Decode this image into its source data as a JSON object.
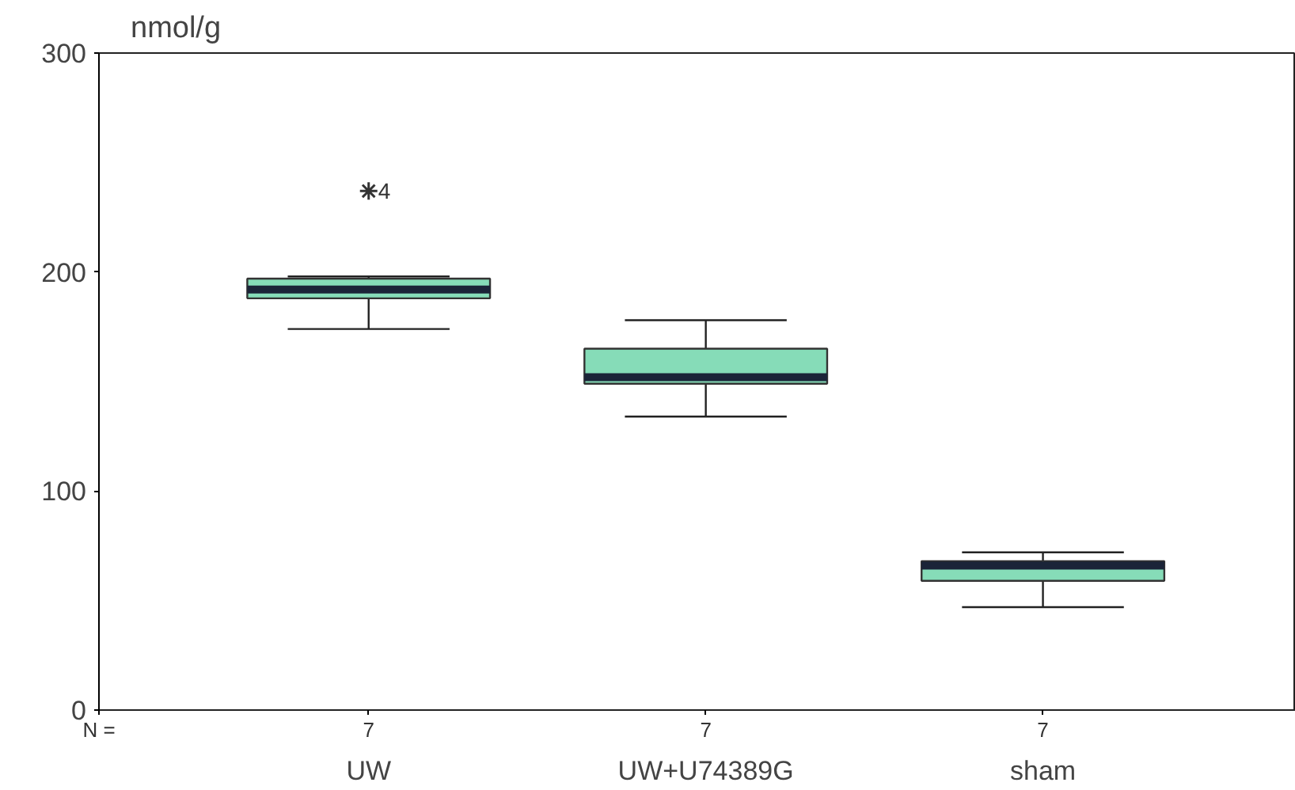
{
  "chart_data": {
    "type": "box",
    "ylabel": "nmol/g",
    "categories": [
      "UW",
      "UW+U74389G",
      "sham"
    ],
    "boxes": [
      {
        "low": 174,
        "q1": 188,
        "median": 192,
        "q3": 197,
        "high": 198,
        "outliers": [
          237
        ]
      },
      {
        "low": 134,
        "q1": 149,
        "median": 152,
        "q3": 165,
        "high": 178
      },
      {
        "low": 47,
        "q1": 59,
        "median": 66,
        "q3": 68,
        "high": 72
      }
    ],
    "color": "#86dcb8",
    "ylim": [
      0,
      300
    ],
    "yticks": [
      0,
      100,
      200,
      300
    ],
    "grid": false,
    "marker": "star",
    "annotations": [
      "4",
      "N =",
      "7",
      "7",
      "7"
    ]
  }
}
